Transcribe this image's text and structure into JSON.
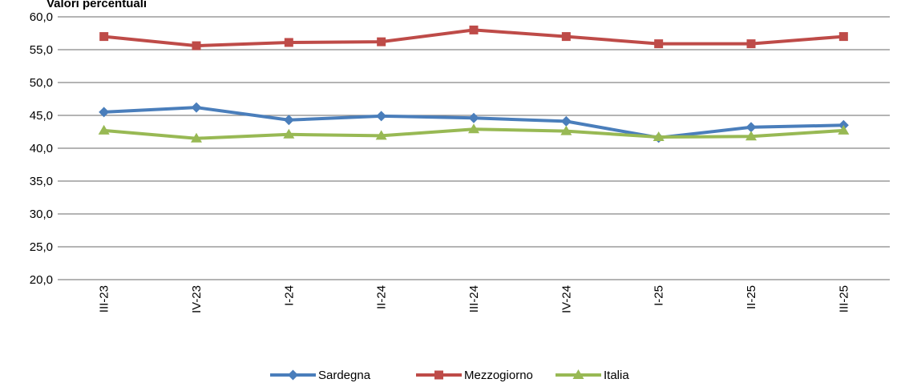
{
  "chart_data": {
    "type": "line",
    "title": "Valori percentuali",
    "xlabel": "",
    "ylabel": "",
    "categories": [
      "III-23",
      "IV-23",
      "I-24",
      "II-24",
      "III-24",
      "IV-24",
      "I-25",
      "II-25",
      "III-25"
    ],
    "y_ticks": [
      "20,0",
      "25,0",
      "30,0",
      "35,0",
      "40,0",
      "45,0",
      "50,0",
      "55,0",
      "60,0"
    ],
    "ylim": [
      20,
      60
    ],
    "grid": true,
    "legend_position": "bottom",
    "series": [
      {
        "name": "Sardegna",
        "color": "#4A7EBB",
        "marker": "diamond",
        "values": [
          45.5,
          46.2,
          44.3,
          44.9,
          44.6,
          44.1,
          41.6,
          43.2,
          43.5
        ]
      },
      {
        "name": "Mezzogiorno",
        "color": "#BE4B48",
        "marker": "square",
        "values": [
          57.0,
          55.6,
          56.1,
          56.2,
          58.0,
          57.0,
          55.9,
          55.9,
          57.0
        ]
      },
      {
        "name": "Italia",
        "color": "#98B954",
        "marker": "triangle",
        "values": [
          42.7,
          41.5,
          42.1,
          41.9,
          42.9,
          42.6,
          41.7,
          41.8,
          42.7
        ]
      }
    ]
  }
}
